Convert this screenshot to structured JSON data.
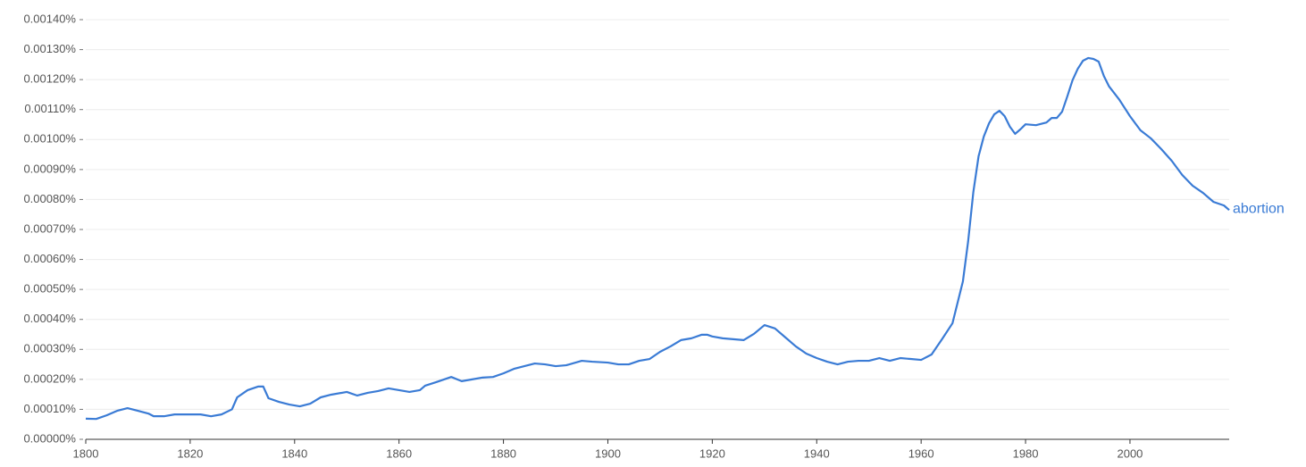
{
  "chart_data": {
    "type": "line",
    "x": [
      1800,
      1802,
      1804,
      1806,
      1808,
      1810,
      1812,
      1813,
      1815,
      1817,
      1820,
      1822,
      1824,
      1826,
      1828,
      1829,
      1831,
      1833,
      1834,
      1835,
      1837,
      1839,
      1841,
      1843,
      1845,
      1847,
      1850,
      1852,
      1854,
      1856,
      1858,
      1860,
      1862,
      1864,
      1865,
      1867,
      1870,
      1872,
      1874,
      1876,
      1878,
      1880,
      1882,
      1884,
      1886,
      1888,
      1890,
      1892,
      1895,
      1897,
      1900,
      1902,
      1904,
      1906,
      1908,
      1910,
      1912,
      1914,
      1916,
      1918,
      1919,
      1920,
      1922,
      1924,
      1926,
      1928,
      1930,
      1932,
      1934,
      1936,
      1938,
      1940,
      1942,
      1944,
      1946,
      1948,
      1950,
      1952,
      1954,
      1956,
      1958,
      1960,
      1962,
      1964,
      1966,
      1968,
      1969,
      1970,
      1971,
      1972,
      1973,
      1974,
      1975,
      1976,
      1977,
      1978,
      1979,
      1980,
      1982,
      1984,
      1985,
      1986,
      1987,
      1988,
      1989,
      1990,
      1991,
      1992,
      1993,
      1994,
      1995,
      1996,
      1998,
      2000,
      2002,
      2004,
      2006,
      2008,
      2010,
      2012,
      2014,
      2016,
      2018,
      2019
    ],
    "series": [
      {
        "name": "abortion",
        "color": "#3a7bd5",
        "values": [
          6.9e-05,
          6.8e-05,
          8e-05,
          9.5e-05,
          0.000104,
          9.5e-05,
          8.6e-05,
          7.7e-05,
          7.7e-05,
          8.3e-05,
          8.3e-05,
          8.3e-05,
          7.7e-05,
          8.3e-05,
          0.0001,
          0.00014,
          0.000164,
          0.000176,
          0.000176,
          0.000137,
          0.000125,
          0.000116,
          0.00011,
          0.000119,
          0.00014,
          0.000149,
          0.000158,
          0.000146,
          0.000155,
          0.000161,
          0.00017,
          0.000164,
          0.000158,
          0.000164,
          0.000179,
          0.00019,
          0.000208,
          0.000194,
          0.0002,
          0.000206,
          0.000208,
          0.00022,
          0.000235,
          0.000244,
          0.000253,
          0.00025,
          0.000244,
          0.000247,
          0.000262,
          0.000259,
          0.000256,
          0.00025,
          0.00025,
          0.000262,
          0.000268,
          0.000292,
          0.00031,
          0.000331,
          0.000337,
          0.000349,
          0.000349,
          0.000343,
          0.000337,
          0.000334,
          0.000331,
          0.000352,
          0.000381,
          0.00037,
          0.00034,
          0.00031,
          0.000286,
          0.000271,
          0.000259,
          0.00025,
          0.000259,
          0.000262,
          0.000262,
          0.000271,
          0.000262,
          0.000271,
          0.000268,
          0.000265,
          0.000283,
          0.000334,
          0.000387,
          0.000527,
          0.00066,
          0.000825,
          0.000944,
          0.00101,
          0.001054,
          0.001084,
          0.001096,
          0.001078,
          0.001043,
          0.001019,
          0.001034,
          0.001051,
          0.001048,
          0.001057,
          0.001072,
          0.001072,
          0.001093,
          0.001144,
          0.001198,
          0.001236,
          0.001263,
          0.001272,
          0.001269,
          0.00126,
          0.001212,
          0.001177,
          0.001132,
          0.001078,
          0.001031,
          0.001004,
          0.000968,
          0.000929,
          0.000882,
          0.000846,
          0.000822,
          0.000792,
          0.00078,
          0.000765
        ]
      }
    ],
    "xlim": [
      1800,
      2019
    ],
    "xticks": [
      1800,
      1820,
      1840,
      1860,
      1880,
      1900,
      1920,
      1940,
      1960,
      1980,
      2000
    ],
    "ylim": [
      0,
      0.0014
    ],
    "yticks": [
      {
        "value": 0,
        "label": "0.00000%"
      },
      {
        "value": 0.0001,
        "label": "0.00010%"
      },
      {
        "value": 0.0002,
        "label": "0.00020%"
      },
      {
        "value": 0.0003,
        "label": "0.00030%"
      },
      {
        "value": 0.0004,
        "label": "0.00040%"
      },
      {
        "value": 0.0005,
        "label": "0.00050%"
      },
      {
        "value": 0.0006,
        "label": "0.00060%"
      },
      {
        "value": 0.0007,
        "label": "0.00070%"
      },
      {
        "value": 0.0008,
        "label": "0.00080%"
      },
      {
        "value": 0.0009,
        "label": "0.00090%"
      },
      {
        "value": 0.001,
        "label": "0.00100%"
      },
      {
        "value": 0.0011,
        "label": "0.00110%"
      },
      {
        "value": 0.0012,
        "label": "0.00120%"
      },
      {
        "value": 0.0013,
        "label": "0.00130%"
      },
      {
        "value": 0.0014,
        "label": "0.00140%"
      }
    ],
    "grid": true
  }
}
